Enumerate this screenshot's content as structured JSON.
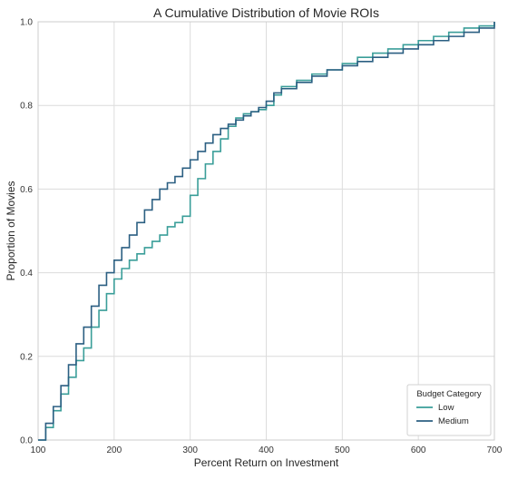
{
  "chart_data": {
    "type": "line",
    "subtype": "step-ecdf",
    "title": "A Cumulative Distribution of Movie ROIs",
    "xlabel": "Percent Return on Investment",
    "ylabel": "Proportion of Movies",
    "xlim": [
      100,
      700
    ],
    "ylim": [
      0,
      1.0
    ],
    "x_ticks": [
      "100",
      "200",
      "300",
      "400",
      "500",
      "600",
      "700"
    ],
    "y_ticks": [
      "0.0",
      "0.2",
      "0.4",
      "0.6",
      "0.8",
      "1.0"
    ],
    "grid": true,
    "legend": {
      "title": "Budget Category",
      "placement": "bottom-right"
    },
    "series": [
      {
        "name": "Low",
        "color": "#3a9e99",
        "x": [
          100,
          110,
          120,
          130,
          140,
          150,
          160,
          170,
          180,
          190,
          200,
          210,
          220,
          230,
          240,
          250,
          260,
          270,
          280,
          290,
          300,
          310,
          320,
          330,
          340,
          350,
          360,
          370,
          380,
          390,
          400,
          410,
          420,
          440,
          460,
          480,
          500,
          520,
          540,
          560,
          580,
          600,
          620,
          640,
          660,
          680,
          700
        ],
        "y": [
          0.0,
          0.03,
          0.07,
          0.11,
          0.15,
          0.19,
          0.22,
          0.27,
          0.31,
          0.35,
          0.385,
          0.41,
          0.43,
          0.445,
          0.46,
          0.475,
          0.49,
          0.51,
          0.52,
          0.535,
          0.585,
          0.625,
          0.66,
          0.69,
          0.72,
          0.75,
          0.77,
          0.78,
          0.785,
          0.79,
          0.8,
          0.825,
          0.845,
          0.86,
          0.875,
          0.885,
          0.9,
          0.915,
          0.925,
          0.935,
          0.945,
          0.955,
          0.965,
          0.975,
          0.985,
          0.99,
          1.0
        ]
      },
      {
        "name": "Medium",
        "color": "#2b5f82",
        "x": [
          100,
          110,
          120,
          130,
          140,
          150,
          160,
          170,
          180,
          190,
          200,
          210,
          220,
          230,
          240,
          250,
          260,
          270,
          280,
          290,
          300,
          310,
          320,
          330,
          340,
          350,
          360,
          370,
          380,
          390,
          400,
          410,
          420,
          440,
          460,
          480,
          500,
          520,
          540,
          560,
          580,
          600,
          620,
          640,
          660,
          680,
          700
        ],
        "y": [
          0.0,
          0.04,
          0.08,
          0.13,
          0.18,
          0.23,
          0.27,
          0.32,
          0.37,
          0.4,
          0.43,
          0.46,
          0.49,
          0.52,
          0.55,
          0.575,
          0.6,
          0.615,
          0.63,
          0.65,
          0.67,
          0.69,
          0.71,
          0.73,
          0.745,
          0.755,
          0.765,
          0.775,
          0.785,
          0.795,
          0.81,
          0.83,
          0.84,
          0.855,
          0.87,
          0.885,
          0.895,
          0.905,
          0.915,
          0.925,
          0.935,
          0.945,
          0.955,
          0.965,
          0.975,
          0.985,
          1.0
        ]
      }
    ]
  }
}
